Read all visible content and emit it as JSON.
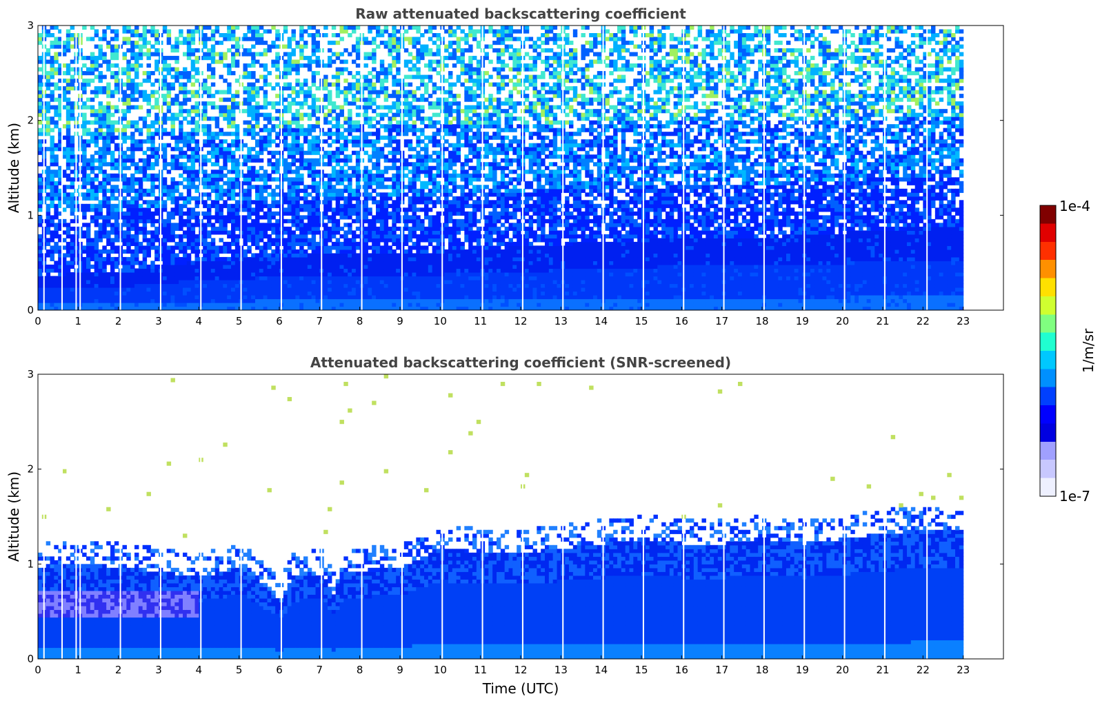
{
  "chart_data": [
    {
      "type": "heatmap",
      "title": "Raw attenuated backscattering coefficient",
      "xlabel": "",
      "ylabel": "Altitude (km)",
      "xlim": [
        0,
        24
      ],
      "ylim": [
        0,
        3
      ],
      "x_ticks": [
        "0",
        "1",
        "2",
        "3",
        "4",
        "5",
        "6",
        "7",
        "8",
        "9",
        "10",
        "11",
        "12",
        "13",
        "14",
        "15",
        "16",
        "17",
        "18",
        "19",
        "20",
        "21",
        "22",
        "23"
      ],
      "y_ticks": [
        "0",
        "1",
        "2",
        "3"
      ],
      "data_time_range": [
        0,
        23
      ],
      "data_gap_times": [
        0.15,
        0.6,
        0.95,
        1.05,
        2.05,
        3.05,
        4.05,
        5.05,
        6.05,
        7.05,
        8.05,
        9.05,
        10.05,
        11.05,
        12.05,
        13.05,
        14.05,
        15.05,
        16.05,
        17.05,
        18.05,
        19.05,
        20.05,
        21.05,
        22.1
      ],
      "signal_top_km": [
        [
          0,
          0.35
        ],
        [
          2,
          0.38
        ],
        [
          4,
          0.5
        ],
        [
          6,
          0.55
        ],
        [
          8,
          0.6
        ],
        [
          10,
          0.6
        ],
        [
          12,
          0.65
        ],
        [
          14,
          0.7
        ],
        [
          16,
          0.75
        ],
        [
          18,
          0.75
        ],
        [
          20,
          0.8
        ],
        [
          22,
          0.85
        ],
        [
          23,
          0.85
        ]
      ],
      "noise": "strong",
      "grid": false
    },
    {
      "type": "heatmap",
      "title": "Attenuated backscattering coefficient (SNR-screened)",
      "xlabel": "Time (UTC)",
      "ylabel": "Altitude (km)",
      "xlim": [
        0,
        24
      ],
      "ylim": [
        0,
        3
      ],
      "x_ticks": [
        "0",
        "1",
        "2",
        "3",
        "4",
        "5",
        "6",
        "7",
        "8",
        "9",
        "10",
        "11",
        "12",
        "13",
        "14",
        "15",
        "16",
        "17",
        "18",
        "19",
        "20",
        "21",
        "22",
        "23"
      ],
      "y_ticks": [
        "0",
        "1",
        "2",
        "3"
      ],
      "data_time_range": [
        0,
        23
      ],
      "data_gap_times": [
        0.15,
        0.6,
        0.95,
        1.05,
        2.05,
        3.05,
        4.05,
        5.05,
        6.05,
        7.05,
        8.05,
        9.05,
        10.05,
        11.05,
        12.05,
        13.05,
        14.05,
        15.05,
        16.05,
        17.05,
        18.05,
        19.05,
        20.05,
        21.05,
        22.1
      ],
      "layer_top_km": [
        [
          0,
          0.95
        ],
        [
          1,
          0.98
        ],
        [
          2,
          0.95
        ],
        [
          3,
          0.9
        ],
        [
          4,
          0.85
        ],
        [
          5,
          0.95
        ],
        [
          6,
          0.6
        ],
        [
          6.3,
          0.85
        ],
        [
          7,
          0.88
        ],
        [
          7.3,
          0.65
        ],
        [
          7.6,
          0.9
        ],
        [
          8,
          0.9
        ],
        [
          9,
          0.95
        ],
        [
          10,
          1.15
        ],
        [
          11,
          1.1
        ],
        [
          12,
          1.1
        ],
        [
          13,
          1.15
        ],
        [
          14,
          1.2
        ],
        [
          15,
          1.25
        ],
        [
          16,
          1.2
        ],
        [
          17,
          1.2
        ],
        [
          18,
          1.25
        ],
        [
          19,
          1.2
        ],
        [
          20,
          1.25
        ],
        [
          21,
          1.3
        ],
        [
          22,
          1.35
        ],
        [
          23,
          1.35
        ]
      ],
      "noise": "screened",
      "grid": false
    }
  ],
  "colorbar": {
    "max_label": "1e-4",
    "min_label": "1e-7",
    "unit_label": "1/m/sr",
    "colors": [
      "#eef0ff",
      "#c8c8ff",
      "#a0a0ff",
      "#0000e0",
      "#0000ff",
      "#0040ff",
      "#0090ff",
      "#00c8ff",
      "#20ffd0",
      "#80ff80",
      "#d0ff30",
      "#ffe000",
      "#ff9000",
      "#ff3000",
      "#e00000",
      "#800000"
    ],
    "scale": "log"
  }
}
